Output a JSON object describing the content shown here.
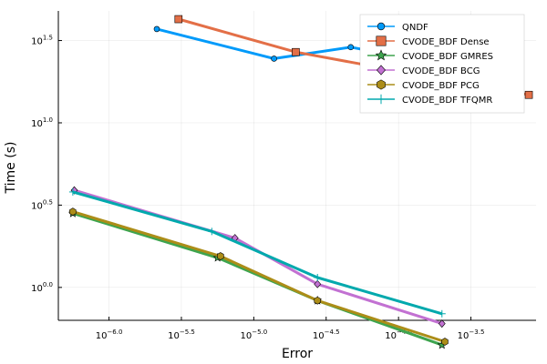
{
  "chart_data": {
    "type": "line",
    "xlabel": "Error",
    "ylabel": "Time (s)",
    "x_scale": "log10",
    "y_scale": "log10",
    "xlim": [
      -6.35,
      -3.05
    ],
    "ylim": [
      -0.2,
      1.68
    ],
    "grid": true,
    "legend_position": "top-right",
    "x_ticks": [
      {
        "value": -6.0,
        "base": "10",
        "exp": "−6.0"
      },
      {
        "value": -5.5,
        "base": "10",
        "exp": "−5.5"
      },
      {
        "value": -5.0,
        "base": "10",
        "exp": "−5.0"
      },
      {
        "value": -4.5,
        "base": "10",
        "exp": "−4.5"
      },
      {
        "value": -4.0,
        "base": "10",
        "exp": "−4.0"
      },
      {
        "value": -3.5,
        "base": "10",
        "exp": "−3.5"
      }
    ],
    "y_ticks": [
      {
        "value": 0.0,
        "base": "10",
        "exp": "0.0"
      },
      {
        "value": 0.5,
        "base": "10",
        "exp": "0.5"
      },
      {
        "value": 1.0,
        "base": "10",
        "exp": "1.0"
      },
      {
        "value": 1.5,
        "base": "10",
        "exp": "1.5"
      }
    ],
    "series": [
      {
        "name": "QNDF",
        "color": "#009AFA",
        "marker": "circle",
        "x": [
          -5.67,
          -4.86,
          -4.33,
          -3.8,
          -3.34
        ],
        "y": [
          1.57,
          1.39,
          1.46,
          1.37,
          1.2
        ]
      },
      {
        "name": "CVODE_BDF Dense",
        "color": "#E36F47",
        "marker": "square",
        "x": [
          -5.52,
          -4.71,
          -3.1
        ],
        "y": [
          1.63,
          1.43,
          1.17
        ]
      },
      {
        "name": "CVODE_BDF GMRES",
        "color": "#3EA44E",
        "marker": "star",
        "x": [
          -6.25,
          -5.25,
          -4.56,
          -3.7
        ],
        "y": [
          0.45,
          0.18,
          -0.08,
          -0.35
        ]
      },
      {
        "name": "CVODE_BDF BCG",
        "color": "#C271D2",
        "marker": "diamond",
        "x": [
          -6.24,
          -5.13,
          -4.56,
          -3.7
        ],
        "y": [
          0.59,
          0.3,
          0.02,
          -0.22
        ]
      },
      {
        "name": "CVODE_BDF PCG",
        "color": "#AC8D18",
        "marker": "hexagon",
        "x": [
          -6.25,
          -5.23,
          -4.56,
          -3.68
        ],
        "y": [
          0.46,
          0.19,
          -0.08,
          -0.33
        ]
      },
      {
        "name": "CVODE_BDF TFQMR",
        "color": "#00A9AD",
        "marker": "cross",
        "x": [
          -6.25,
          -5.29,
          -4.56,
          -3.7
        ],
        "y": [
          0.58,
          0.34,
          0.06,
          -0.16
        ]
      }
    ]
  }
}
